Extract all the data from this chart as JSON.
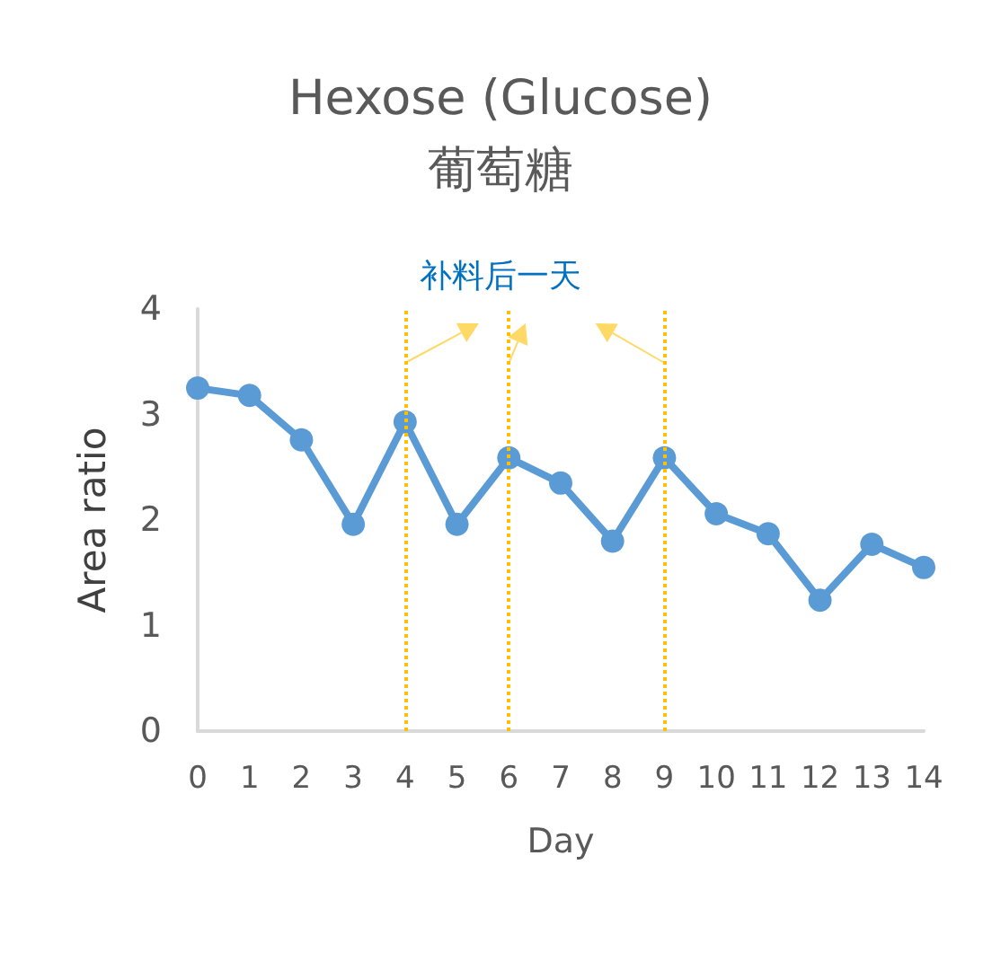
{
  "chart_data": {
    "type": "line",
    "title": "Hexose (Glucose)\n葡萄糖",
    "xlabel": "Day",
    "ylabel": "Area ratio",
    "categories": [
      "0",
      "1",
      "2",
      "3",
      "4",
      "5",
      "6",
      "7",
      "8",
      "9",
      "10",
      "11",
      "12",
      "13",
      "14"
    ],
    "series": [
      {
        "color": "#5b9bd5",
        "values": [
          3.25,
          3.18,
          2.76,
          1.96,
          2.93,
          1.96,
          2.59,
          2.35,
          1.8,
          2.59,
          2.06,
          1.87,
          1.24,
          1.77,
          1.55
        ]
      }
    ],
    "ylim": [
      0,
      4
    ],
    "yticks": [
      0,
      1,
      2,
      3,
      4
    ],
    "grid": false,
    "marker": "circle",
    "line_style": "solid",
    "ref_lines": [
      {
        "axis": "x",
        "value": "4",
        "label": null,
        "color": "#ffc000",
        "line_style": "dotted"
      },
      {
        "axis": "x",
        "value": "6",
        "label": null,
        "color": "#ffc000",
        "line_style": "dotted"
      },
      {
        "axis": "x",
        "value": "9",
        "label": null,
        "color": "#ffc000",
        "line_style": "dotted"
      }
    ],
    "annotations": [
      "补料后一天"
    ]
  }
}
